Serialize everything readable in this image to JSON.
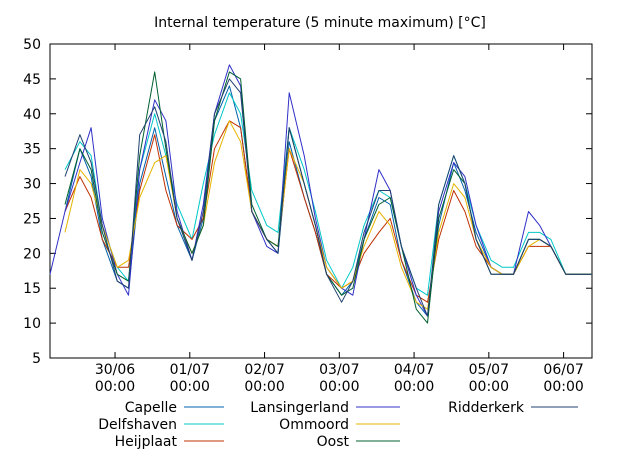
{
  "chart_data": {
    "type": "line",
    "title": "Internal temperature (5 minute maximum) [°C]",
    "xlabel": "",
    "ylabel": "",
    "ylim": [
      5,
      50
    ],
    "yticks": [
      5,
      10,
      15,
      20,
      25,
      30,
      35,
      40,
      45,
      50
    ],
    "xlim": [
      0,
      7.25
    ],
    "xticks": [
      {
        "x": 0.87,
        "label1": "30/06",
        "label2": "00:00"
      },
      {
        "x": 1.87,
        "label1": "01/07",
        "label2": "00:00"
      },
      {
        "x": 2.87,
        "label1": "02/07",
        "label2": "00:00"
      },
      {
        "x": 3.87,
        "label1": "03/07",
        "label2": "00:00"
      },
      {
        "x": 4.87,
        "label1": "04/07",
        "label2": "00:00"
      },
      {
        "x": 5.87,
        "label1": "05/07",
        "label2": "00:00"
      },
      {
        "x": 6.87,
        "label1": "06/07",
        "label2": "00:00"
      }
    ],
    "grid": false,
    "legend_position": "bottom",
    "x": [
      0,
      0.2,
      0.4,
      0.55,
      0.7,
      0.9,
      1.05,
      1.2,
      1.4,
      1.55,
      1.7,
      1.9,
      2.05,
      2.2,
      2.4,
      2.55,
      2.7,
      2.9,
      3.05,
      3.2,
      3.4,
      3.55,
      3.7,
      3.9,
      4.05,
      4.2,
      4.4,
      4.55,
      4.7,
      4.9,
      5.05,
      5.2,
      5.4,
      5.55,
      5.7,
      5.9,
      6.05,
      6.2,
      6.4,
      6.55,
      6.7,
      6.9,
      7.1,
      7.25
    ],
    "series": [
      {
        "name": "Capelle",
        "color": "#0060ad",
        "values": [
          null,
          26,
          35,
          31,
          22,
          16,
          15,
          30,
          38,
          31,
          24,
          19,
          25,
          39,
          44,
          38,
          26,
          22,
          20,
          36,
          28,
          23,
          17,
          14,
          16,
          22,
          28,
          27,
          19,
          13,
          11,
          24,
          33,
          29,
          23,
          18,
          17,
          17,
          22,
          22,
          21,
          17,
          17,
          17
        ]
      },
      {
        "name": "Delfshaven",
        "color": "#00c8c8",
        "values": [
          null,
          32,
          36,
          34,
          24,
          18,
          16,
          32,
          40,
          34,
          27,
          22,
          30,
          37,
          43,
          40,
          29,
          24,
          23,
          38,
          32,
          26,
          19,
          15,
          18,
          24,
          29,
          28,
          21,
          15,
          14,
          27,
          34,
          30,
          24,
          19,
          18,
          18,
          23,
          23,
          22,
          17,
          17,
          17
        ]
      },
      {
        "name": "Heijplaat",
        "color": "#c03000",
        "values": [
          null,
          26,
          31,
          28,
          22,
          18,
          18,
          29,
          37,
          29,
          24,
          22,
          25,
          35,
          39,
          38,
          26,
          22,
          21,
          35,
          28,
          23,
          17,
          15,
          16,
          20,
          23,
          25,
          19,
          14,
          13,
          22,
          29,
          26,
          21,
          18,
          17,
          17,
          21,
          21,
          21,
          17,
          17,
          17
        ]
      },
      {
        "name": "Lansingerland",
        "color": "#3030c8",
        "values": [
          17,
          26,
          33,
          38,
          25,
          17,
          14,
          32,
          42,
          39,
          26,
          19,
          27,
          40,
          47,
          44,
          26,
          21,
          20,
          43,
          34,
          25,
          18,
          15,
          14,
          22,
          32,
          29,
          21,
          14,
          11,
          26,
          33,
          31,
          24,
          18,
          17,
          17,
          26,
          24,
          21,
          17,
          17,
          17
        ]
      },
      {
        "name": "Ommoord",
        "color": "#e6b400",
        "values": [
          null,
          23,
          32,
          30,
          24,
          18,
          19,
          28,
          33,
          34,
          25,
          20,
          24,
          33,
          39,
          36,
          26,
          22,
          21,
          35,
          30,
          24,
          18,
          15,
          16,
          21,
          26,
          24,
          18,
          13,
          12,
          23,
          30,
          28,
          22,
          18,
          17,
          17,
          21,
          22,
          21,
          17,
          17,
          17
        ]
      },
      {
        "name": "Oost",
        "color": "#006030",
        "values": [
          null,
          27,
          35,
          32,
          23,
          17,
          16,
          34,
          46,
          35,
          25,
          20,
          24,
          39,
          46,
          45,
          27,
          22,
          21,
          38,
          30,
          24,
          17,
          14,
          15,
          22,
          27,
          28,
          21,
          12,
          10,
          25,
          32,
          30,
          22,
          17,
          17,
          17,
          22,
          22,
          21,
          17,
          17,
          17
        ]
      },
      {
        "name": "Ridderkerk",
        "color": "#204070",
        "values": [
          null,
          31,
          37,
          33,
          24,
          16,
          15,
          37,
          41,
          36,
          25,
          19,
          26,
          40,
          45,
          43,
          26,
          22,
          20,
          38,
          30,
          24,
          17,
          13,
          16,
          23,
          29,
          29,
          21,
          15,
          11,
          27,
          34,
          30,
          22,
          17,
          17,
          17,
          22,
          22,
          21,
          17,
          17,
          17
        ]
      }
    ]
  }
}
